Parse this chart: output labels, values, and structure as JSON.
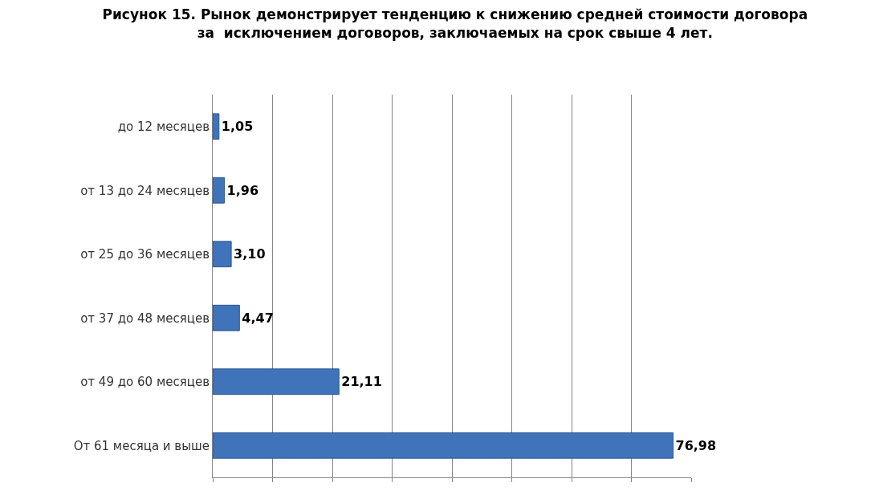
{
  "chart_data": {
    "type": "bar",
    "orientation": "horizontal",
    "title": "Рисунок 15. Рынок демонстрирует тенденцию к снижению средней стоимости договора\nза  исключением договоров, заключаемых на срок свыше 4 лет.",
    "categories": [
      "до 12 месяцев",
      "от 13 до 24 месяцев",
      "от 25 до 36 месяцев",
      "от 37 до 48 месяцев",
      "от 49 до 60 месяцев",
      "От 61 месяца и выше"
    ],
    "values": [
      1.05,
      1.96,
      3.1,
      4.47,
      21.11,
      76.98
    ],
    "value_labels": [
      "1,05",
      "1,96",
      "3,10",
      "4,47",
      "21,11",
      "76,98"
    ],
    "color": "#3f74ba",
    "xlim": [
      0,
      80
    ],
    "xticks": [
      {
        "value": 0,
        "label": null
      },
      {
        "value": 10,
        "label": null
      },
      {
        "value": 20,
        "label": null
      },
      {
        "value": 30,
        "label": null
      },
      {
        "value": 40,
        "label": null
      },
      {
        "value": 50,
        "label": null
      },
      {
        "value": 60,
        "label": null
      },
      {
        "value": 70,
        "label": null
      },
      {
        "value": 80,
        "label": null
      }
    ],
    "tick_labels": "y",
    "grid": "x"
  }
}
